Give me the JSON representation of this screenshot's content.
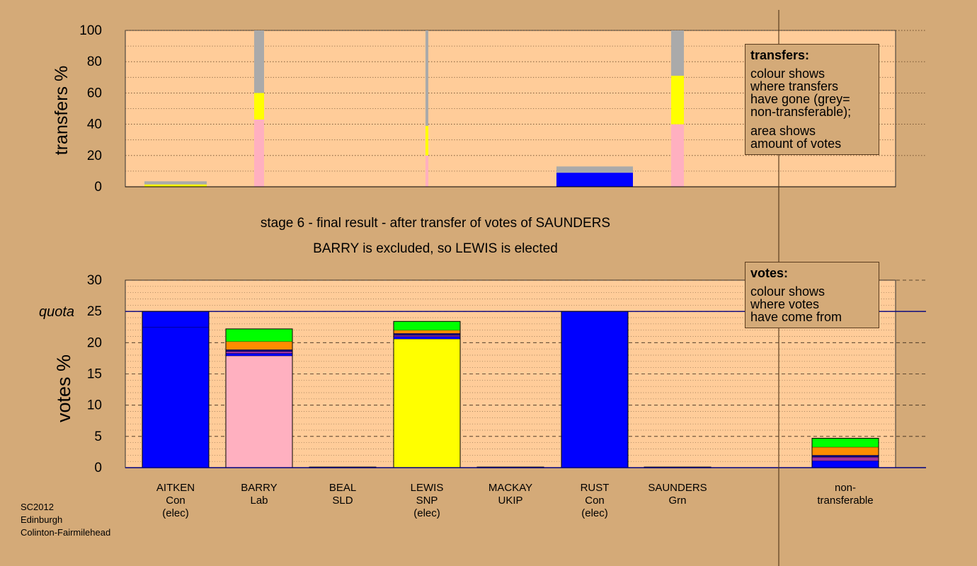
{
  "chart_data": [
    {
      "type": "bar",
      "stacked": true,
      "ylabel": "transfers %",
      "ylim": [
        0,
        100
      ],
      "yticks": [
        "0",
        "20",
        "40",
        "60",
        "80",
        "100"
      ],
      "categories": [
        "AITKEN",
        "BARRY",
        "BEAL",
        "LEWIS",
        "MACKAY",
        "RUST",
        "SAUNDERS"
      ],
      "bars": [
        {
          "category": "AITKEN",
          "segments": [
            {
              "color": "#ffff00",
              "value": 1.5
            },
            {
              "color": "#aaaaaa",
              "value": 2
            }
          ]
        },
        {
          "category": "BARRY",
          "segments": [
            {
              "color": "#ffb0c0",
              "value": 43
            },
            {
              "color": "#ffff00",
              "value": 17
            },
            {
              "color": "#aaaaaa",
              "value": 40
            }
          ]
        },
        {
          "category": "LEWIS",
          "segments": [
            {
              "color": "#ffb0c0",
              "value": 20
            },
            {
              "color": "#ffff00",
              "value": 19
            },
            {
              "color": "#aaaaaa",
              "value": 61
            }
          ]
        },
        {
          "category": "RUST",
          "segments": [
            {
              "color": "#0000ff",
              "value": 9
            },
            {
              "color": "#aaaaaa",
              "value": 4
            }
          ]
        },
        {
          "category": "SAUNDERS",
          "segments": [
            {
              "color": "#ffb0c0",
              "value": 40
            },
            {
              "color": "#ffff00",
              "value": 31
            },
            {
              "color": "#aaaaaa",
              "value": 29
            }
          ]
        }
      ],
      "legend": {
        "title": "transfers:",
        "lines": [
          "colour shows",
          "where transfers",
          "have gone (grey=",
          "non-transferable);",
          "",
          "area shows",
          "amount of votes"
        ]
      }
    },
    {
      "type": "bar",
      "stacked": true,
      "ylabel": "votes %",
      "ylim": [
        0,
        30
      ],
      "yticks": [
        "0",
        "5",
        "10",
        "15",
        "20",
        "25",
        "30"
      ],
      "quota": {
        "label": "quota",
        "value": 25
      },
      "categories": [
        "AITKEN",
        "BARRY",
        "BEAL",
        "LEWIS",
        "MACKAY",
        "RUST",
        "SAUNDERS",
        "non-transferable"
      ],
      "bars": [
        {
          "category": "AITKEN",
          "segments": [
            {
              "color": "#0000ff",
              "value": 22.5
            },
            {
              "color": "#0000ff",
              "value": 2.5
            }
          ]
        },
        {
          "category": "BARRY",
          "segments": [
            {
              "color": "#ffb0c0",
              "value": 17.9
            },
            {
              "color": "#0000ff",
              "value": 0.4
            },
            {
              "color": "#a030a0",
              "value": 0.3
            },
            {
              "color": "#000080",
              "value": 0.3
            },
            {
              "color": "#ff8c00",
              "value": 1.3
            },
            {
              "color": "#00ff00",
              "value": 2.0
            }
          ]
        },
        {
          "category": "BEAL",
          "segments": [
            {
              "color": "#ffff00",
              "value": 0.1
            }
          ]
        },
        {
          "category": "LEWIS",
          "segments": [
            {
              "color": "#ffff00",
              "value": 20.6
            },
            {
              "color": "#0000ff",
              "value": 0.4
            },
            {
              "color": "#a030a0",
              "value": 0.2
            },
            {
              "color": "#000080",
              "value": 0.3
            },
            {
              "color": "#ff8c00",
              "value": 0.5
            },
            {
              "color": "#00ff00",
              "value": 1.4
            }
          ]
        },
        {
          "category": "MACKAY",
          "segments": [
            {
              "color": "#a030a0",
              "value": 0.1
            }
          ]
        },
        {
          "category": "RUST",
          "segments": [
            {
              "color": "#0000ff",
              "value": 25
            }
          ]
        },
        {
          "category": "SAUNDERS",
          "segments": [
            {
              "color": "#00ff00",
              "value": 0.1
            }
          ]
        },
        {
          "category": "non-transferable",
          "segments": [
            {
              "color": "#0000ff",
              "value": 1.1
            },
            {
              "color": "#a030a0",
              "value": 0.6
            },
            {
              "color": "#000080",
              "value": 0.3
            },
            {
              "color": "#ff8c00",
              "value": 1.3
            },
            {
              "color": "#00ff00",
              "value": 1.4
            }
          ]
        }
      ],
      "legend": {
        "title": "votes:",
        "lines": [
          "colour shows",
          "where votes",
          "have come from"
        ]
      }
    }
  ],
  "candidates": [
    {
      "lines": [
        "AITKEN",
        "Con",
        "(elec)"
      ]
    },
    {
      "lines": [
        "BARRY",
        "Lab"
      ]
    },
    {
      "lines": [
        "BEAL",
        "SLD"
      ]
    },
    {
      "lines": [
        "LEWIS",
        "SNP",
        "(elec)"
      ]
    },
    {
      "lines": [
        "MACKAY",
        "UKIP"
      ]
    },
    {
      "lines": [
        "RUST",
        "Con",
        "(elec)"
      ]
    },
    {
      "lines": [
        "SAUNDERS",
        "Grn"
      ]
    },
    {
      "lines": [
        "non-",
        "transferable"
      ]
    }
  ],
  "captions": {
    "stage": "stage 6 - final result - after transfer of votes of SAUNDERS",
    "outcome": "BARRY is excluded, so LEWIS is elected"
  },
  "footer": {
    "lines": [
      "SC2012",
      "Edinburgh",
      "Colinton-Fairmilehead"
    ]
  },
  "colors": {
    "page_bg": "#d4aa78",
    "plot_bg": "#ffcc99",
    "Con": "#0000ff",
    "Lab": "#ffb0c0",
    "SNP": "#ffff00",
    "Grn": "#00ff00",
    "nontransferable": "#aaaaaa"
  }
}
